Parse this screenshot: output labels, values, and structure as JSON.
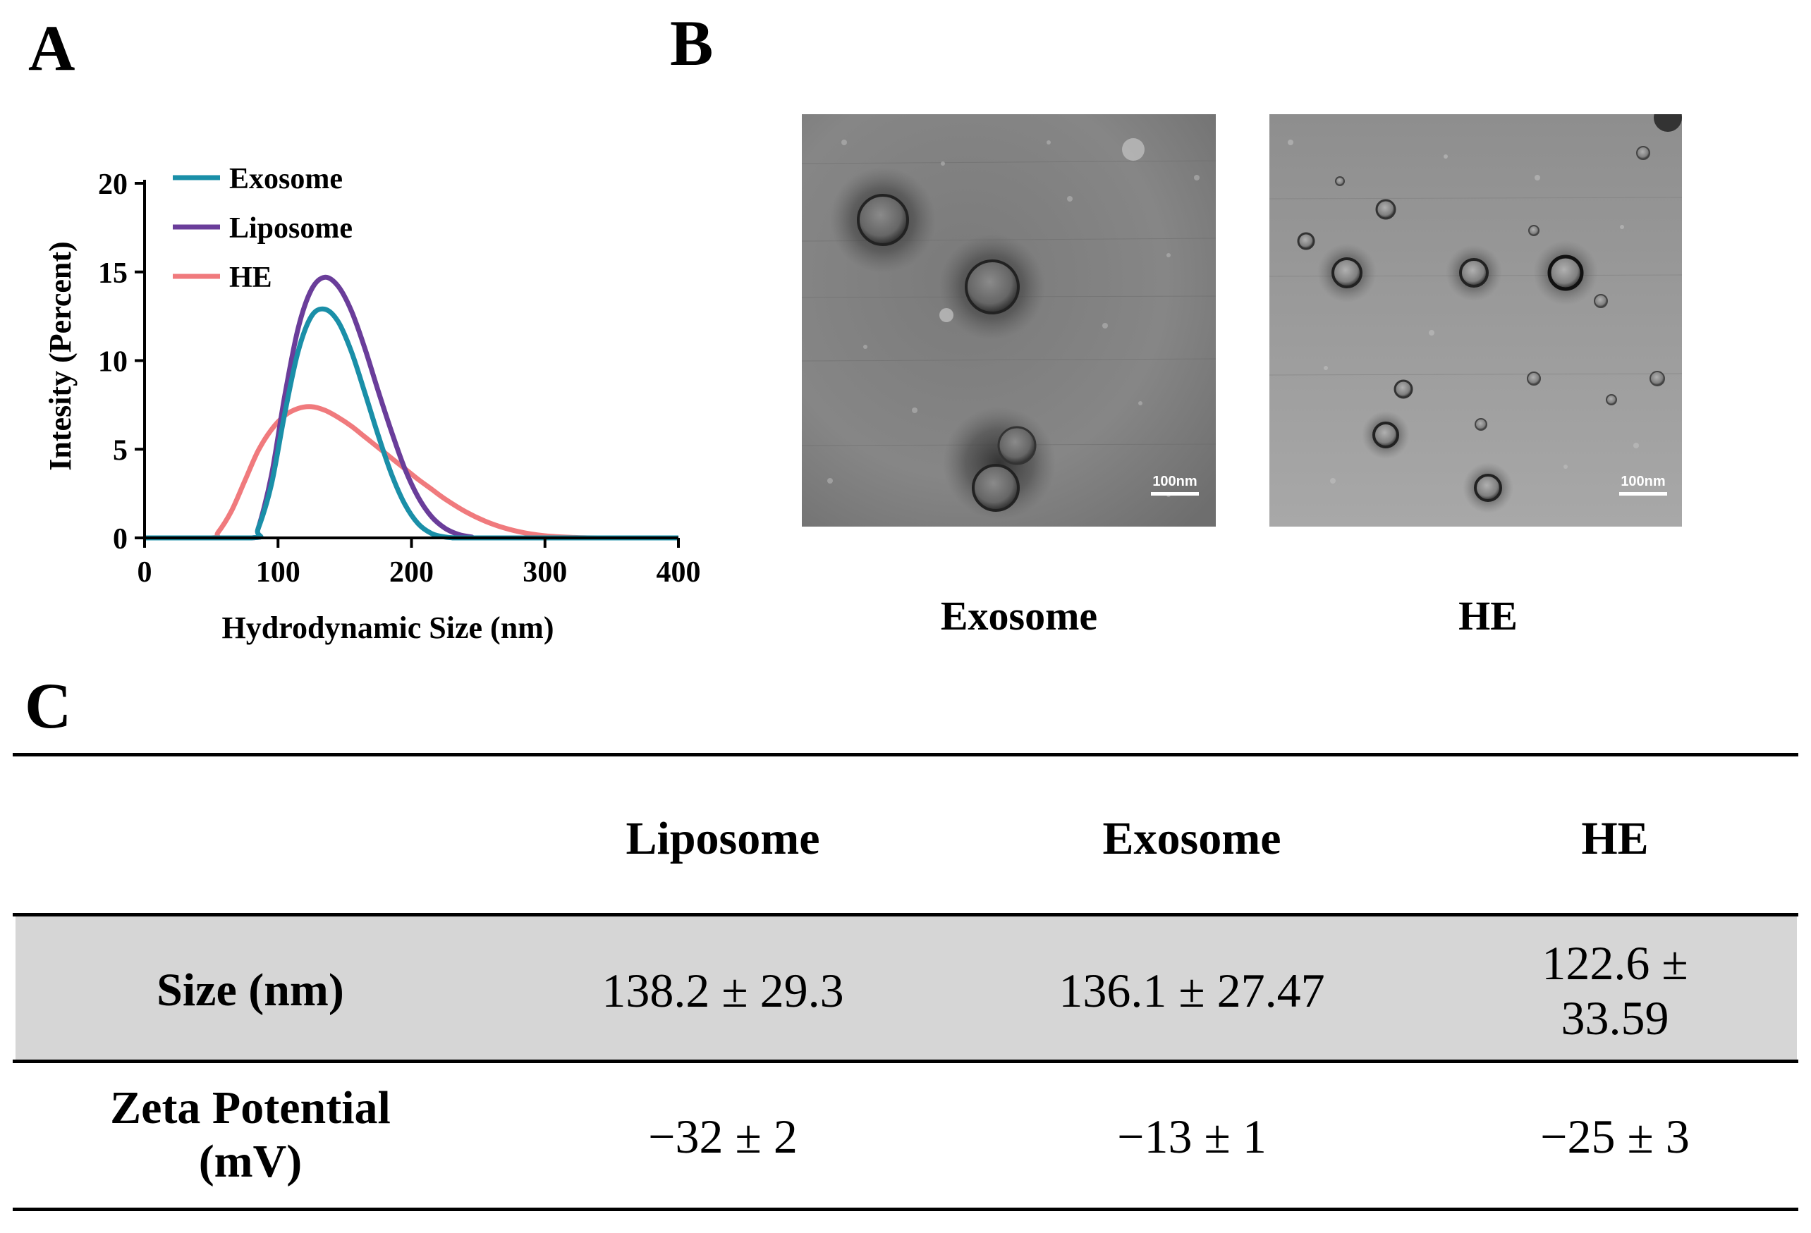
{
  "panels": {
    "a": "A",
    "b": "B",
    "c": "C"
  },
  "chart_data": {
    "type": "line",
    "title": "",
    "xlabel": "Hydrodynamic Size (nm)",
    "ylabel": "Intesity (Percent)",
    "xlim": [
      0,
      400
    ],
    "ylim": [
      0,
      20
    ],
    "xticks": [
      "0",
      "100",
      "200",
      "300",
      "400"
    ],
    "yticks": [
      "0",
      "5",
      "10",
      "15",
      "20"
    ],
    "legend_position": "top-left",
    "grid": false,
    "series": [
      {
        "name": "Exosome",
        "color": "#1a8fa8",
        "x": [
          0,
          80,
          85,
          95,
          105,
          115,
          125,
          135,
          145,
          155,
          165,
          175,
          185,
          195,
          205,
          215,
          225,
          235,
          245,
          400
        ],
        "y": [
          0,
          0,
          0.5,
          3,
          7,
          10.5,
          12.5,
          12.9,
          12.2,
          10.5,
          8.2,
          5.8,
          3.6,
          1.9,
          0.8,
          0.25,
          0.05,
          0,
          0,
          0
        ]
      },
      {
        "name": "Liposome",
        "color": "#6a3d9a",
        "x": [
          0,
          80,
          85,
          95,
          105,
          115,
          125,
          135,
          145,
          155,
          165,
          175,
          185,
          195,
          205,
          215,
          225,
          235,
          245,
          255,
          400
        ],
        "y": [
          0,
          0,
          0.5,
          3.5,
          8,
          11.8,
          14,
          14.7,
          14.2,
          12.8,
          10.7,
          8.3,
          6,
          3.9,
          2.3,
          1.2,
          0.55,
          0.2,
          0.05,
          0,
          0
        ]
      },
      {
        "name": "HE",
        "color": "#f07a7d",
        "x": [
          0,
          50,
          55,
          65,
          75,
          85,
          95,
          105,
          115,
          125,
          135,
          145,
          155,
          165,
          175,
          185,
          195,
          205,
          215,
          225,
          240,
          255,
          270,
          285,
          300,
          320,
          340,
          400
        ],
        "y": [
          0,
          0,
          0.3,
          1.5,
          3.2,
          4.9,
          6.1,
          6.9,
          7.3,
          7.4,
          7.2,
          6.8,
          6.3,
          5.7,
          5.1,
          4.5,
          3.9,
          3.3,
          2.75,
          2.2,
          1.5,
          0.95,
          0.55,
          0.28,
          0.12,
          0.03,
          0,
          0
        ]
      }
    ]
  },
  "tem": {
    "images": [
      {
        "name": "Exosome",
        "scale_bar": "100nm"
      },
      {
        "name": "HE",
        "scale_bar": "100nm"
      }
    ]
  },
  "table": {
    "columns": [
      "Liposome",
      "Exosome",
      "HE"
    ],
    "rows": [
      {
        "label": "Size (nm)",
        "values": [
          "138.2 ± 29.3",
          "136.1 ± 27.47",
          "122.6 ± 33.59"
        ]
      },
      {
        "label_line1": "Zeta Potential",
        "label_line2": "(mV)",
        "values": [
          "−32 ± 2",
          "−13 ± 1",
          "−25 ± 3"
        ]
      }
    ]
  }
}
